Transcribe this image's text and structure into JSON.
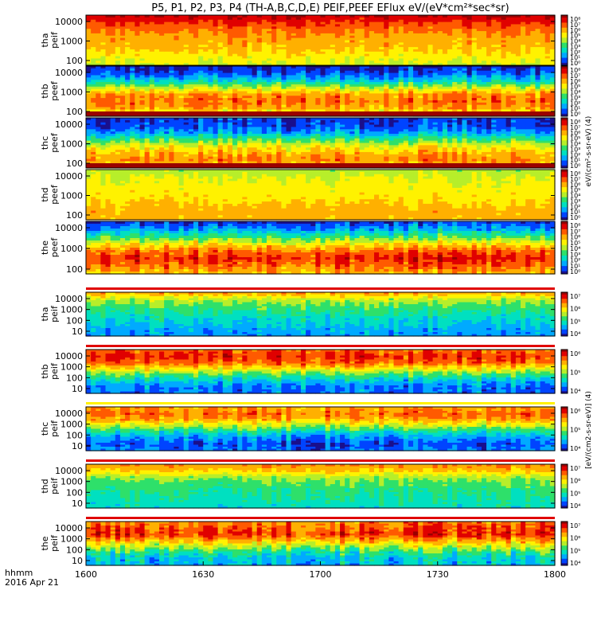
{
  "chart_data": {
    "type": "heatmap",
    "title": "P5, P1, P2, P3, P4 (TH-A,B,C,D,E) PEIF,PEEF EFlux eV/(eV*cm²*sec*sr)",
    "x": {
      "ticks": [
        "1600",
        "1630",
        "1700",
        "1730",
        "1800"
      ],
      "label_line1": "hhmm",
      "label_line2": "2016 Apr 21"
    },
    "colormap": [
      "#1a0f8c",
      "#0044ff",
      "#00aaff",
      "#00e0c0",
      "#2ee06a",
      "#b7ee2a",
      "#fff200",
      "#ffb000",
      "#ff5a00",
      "#e00000",
      "#9a0000"
    ],
    "colorbar_labels": [
      "eV/(cm²-s-sr-eV) (4)",
      "[eV/(cm2-s-sr-eV)] (4)"
    ],
    "panels": [
      {
        "ylabel": [
          "tha",
          "peif"
        ],
        "yticks": [
          "10000",
          "1000",
          "100"
        ],
        "color_ticks": [
          "10⁸",
          "10⁷",
          "10⁶",
          "10⁵",
          "10⁴",
          "10³",
          "10²",
          "10¹",
          "10⁰"
        ],
        "bands": [
          0.95,
          0.85,
          0.78,
          0.72,
          0.7,
          0.66,
          0.6,
          0.55
        ],
        "variability": 0.05,
        "seed": 11,
        "top_fill": [],
        "bottom_strip": null
      },
      {
        "ylabel": [
          "thb",
          "peef"
        ],
        "yticks": [
          "10000",
          "1000",
          "100"
        ],
        "color_ticks": [
          "10⁸",
          "10⁷",
          "10⁶",
          "10⁵",
          "10⁴",
          "10³",
          "10²",
          "10¹",
          "10⁰"
        ],
        "bands": [
          0.05,
          0.12,
          0.28,
          0.52,
          0.74,
          0.78,
          0.72,
          0.5
        ],
        "variability": 0.08,
        "seed": 23,
        "top_fill": [],
        "bottom_strip": "#9a0000"
      },
      {
        "ylabel": [
          "thc",
          "peef"
        ],
        "yticks": [
          "10000",
          "1000",
          "100"
        ],
        "color_ticks": [
          "10⁸",
          "10⁷",
          "10⁶",
          "10⁵",
          "10⁴",
          "10³",
          "10²",
          "10¹",
          "10⁰"
        ],
        "bands": [
          0.08,
          0.1,
          0.2,
          0.4,
          0.58,
          0.7,
          0.76,
          0.6
        ],
        "variability": 0.08,
        "seed": 37,
        "top_fill": [],
        "bottom_strip": "#9a0000"
      },
      {
        "ylabel": [
          "thd",
          "peef"
        ],
        "yticks": [
          "10000",
          "1000",
          "100"
        ],
        "color_ticks": [
          "10⁸",
          "10⁷",
          "10⁶",
          "10⁵",
          "10⁴",
          "10³",
          "10²",
          "10¹",
          "10⁰"
        ],
        "bands": [
          0.5,
          0.55,
          0.58,
          0.6,
          0.62,
          0.66,
          0.7,
          0.68
        ],
        "variability": 0.04,
        "seed": 41,
        "top_fill": [],
        "bottom_strip": null
      },
      {
        "ylabel": [
          "the",
          "peef"
        ],
        "yticks": [
          "10000",
          "1000",
          "100"
        ],
        "color_ticks": [
          "10⁸",
          "10⁷",
          "10⁶",
          "10⁵",
          "10⁴",
          "10³",
          "10²",
          "10¹",
          "10⁰"
        ],
        "bands": [
          0.08,
          0.22,
          0.4,
          0.62,
          0.8,
          0.88,
          0.8,
          0.7
        ],
        "variability": 0.09,
        "seed": 53,
        "top_fill": [],
        "bottom_strip": null
      },
      {
        "ylabel": [
          "tha",
          "peif"
        ],
        "yticks": [
          "10000",
          "1000",
          "100",
          "10"
        ],
        "color_ticks": [
          "10⁷",
          "10⁶",
          "10⁵",
          "10⁴"
        ],
        "bands": [
          0.7,
          0.52,
          0.42,
          0.36,
          0.3,
          0.26,
          0.2,
          0.18
        ],
        "variability": 0.06,
        "seed": 61,
        "top_fill": [
          "#ffffff",
          "#e00000",
          "#ffffff"
        ],
        "bottom_strip": null
      },
      {
        "ylabel": [
          "thb",
          "peif"
        ],
        "yticks": [
          "10000",
          "1000",
          "100",
          "10"
        ],
        "color_ticks": [
          "10⁶",
          "10⁵",
          "10⁴"
        ],
        "bands": [
          0.8,
          0.86,
          0.8,
          0.62,
          0.42,
          0.26,
          0.16,
          0.14
        ],
        "variability": 0.08,
        "seed": 71,
        "top_fill": [
          "#ffffff",
          "#e00000",
          "#ffffff"
        ],
        "bottom_strip": null
      },
      {
        "ylabel": [
          "thc",
          "peif"
        ],
        "yticks": [
          "10000",
          "1000",
          "100",
          "10"
        ],
        "color_ticks": [
          "10⁶",
          "10⁵",
          "10⁴"
        ],
        "bands": [
          0.72,
          0.78,
          0.7,
          0.52,
          0.32,
          0.18,
          0.1,
          0.14
        ],
        "variability": 0.08,
        "seed": 83,
        "top_fill": [
          "#ffffff",
          "#fff200",
          "#ffffff"
        ],
        "bottom_strip": null
      },
      {
        "ylabel": [
          "thd",
          "peif"
        ],
        "yticks": [
          "10000",
          "1000",
          "100",
          "10"
        ],
        "color_ticks": [
          "10⁷",
          "10⁶",
          "10⁵",
          "10⁴"
        ],
        "bands": [
          0.74,
          0.66,
          0.5,
          0.42,
          0.38,
          0.36,
          0.32,
          0.3
        ],
        "variability": 0.05,
        "seed": 97,
        "top_fill": [
          "#ffffff",
          "#e00000",
          "#ffffff"
        ],
        "bottom_strip": null
      },
      {
        "ylabel": [
          "the",
          "peif"
        ],
        "yticks": [
          "10000",
          "1000",
          "100",
          "10"
        ],
        "color_ticks": [
          "10⁷",
          "10⁶",
          "10⁵",
          "10⁴"
        ],
        "bands": [
          0.76,
          0.82,
          0.86,
          0.7,
          0.52,
          0.36,
          0.26,
          0.24
        ],
        "variability": 0.1,
        "seed": 101,
        "top_fill": [
          "#ffffff",
          "#e00000",
          "#ffffff"
        ],
        "bottom_strip": null
      }
    ]
  }
}
